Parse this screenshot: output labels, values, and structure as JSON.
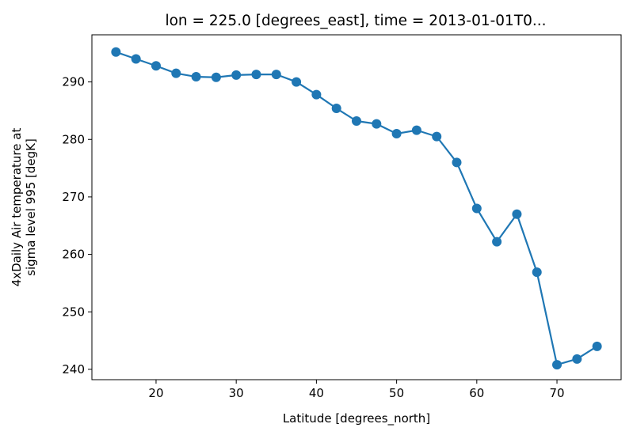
{
  "chart_data": {
    "type": "line",
    "title": "lon = 225.0 [degrees_east], time = 2013-01-01T0...",
    "xlabel": "Latitude [degrees_north]",
    "ylabel_lines": [
      "4xDaily Air temperature at",
      "sigma level 995 [degK]"
    ],
    "xlim": [
      12,
      78
    ],
    "ylim": [
      238.2,
      298.2
    ],
    "xticks": [
      20,
      30,
      40,
      50,
      60,
      70
    ],
    "yticks": [
      240,
      250,
      260,
      270,
      280,
      290
    ],
    "grid": false,
    "series": [
      {
        "color": "#1f77b4",
        "marker": "circle",
        "x": [
          15.0,
          17.5,
          20.0,
          22.5,
          25.0,
          27.5,
          30.0,
          32.5,
          35.0,
          37.5,
          40.0,
          42.5,
          45.0,
          47.5,
          50.0,
          52.5,
          55.0,
          57.5,
          60.0,
          62.5,
          65.0,
          67.5,
          70.0,
          72.5,
          75.0
        ],
        "y": [
          295.2,
          294.0,
          292.8,
          291.5,
          290.9,
          290.8,
          291.2,
          291.3,
          291.3,
          290.0,
          287.8,
          285.4,
          283.2,
          282.7,
          281.0,
          281.6,
          280.5,
          276.0,
          268.0,
          262.2,
          267.0,
          256.9,
          240.8,
          241.8,
          244.0
        ]
      }
    ]
  }
}
